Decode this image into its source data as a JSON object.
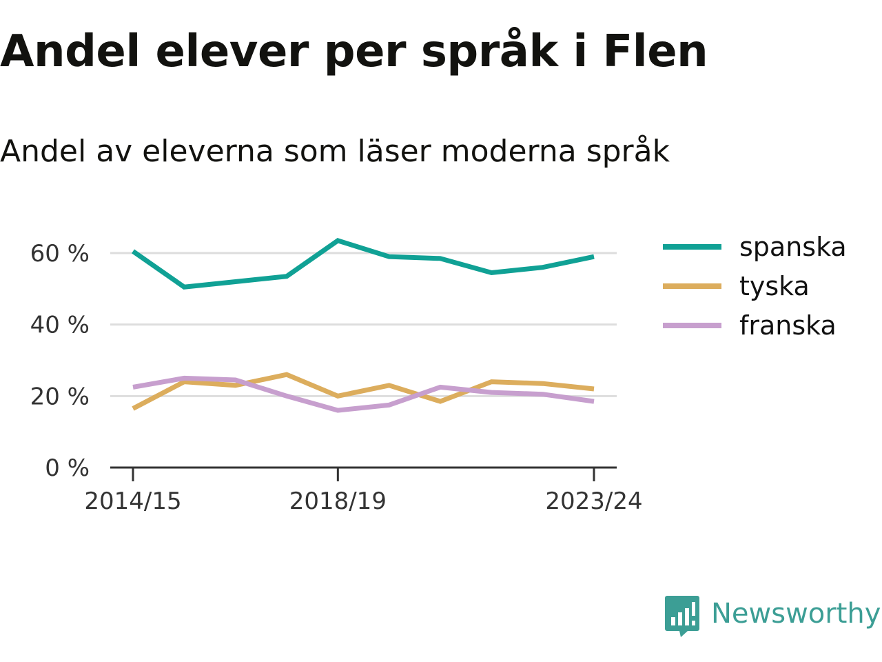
{
  "title": "Andel elever per språk i Flen",
  "subtitle": "Andel av eleverna som läser moderna språk",
  "brand": {
    "name": "Newsworthy",
    "icon": "newsworthy-logo-icon",
    "color": "#3c9e95"
  },
  "chart_data": {
    "type": "line",
    "title": "Andel elever per språk i Flen",
    "subtitle": "Andel av eleverna som läser moderna språk",
    "xlabel": "",
    "ylabel": "",
    "x": [
      "2014/15",
      "2015/16",
      "2016/17",
      "2017/18",
      "2018/19",
      "2019/20",
      "2020/21",
      "2021/22",
      "2022/23",
      "2023/24"
    ],
    "x_tick_labels": [
      "2014/15",
      "2018/19",
      "2023/24"
    ],
    "y_ticks": [
      0,
      20,
      40,
      60
    ],
    "y_tick_labels": [
      "0 %",
      "20 %",
      "40 %",
      "60 %"
    ],
    "ylim": [
      0,
      60
    ],
    "grid": "horizontal",
    "legend": "right",
    "series": [
      {
        "name": "spanska",
        "color": "#10a195",
        "values": [
          60.5,
          50.5,
          52.0,
          53.5,
          63.5,
          59.0,
          58.5,
          54.5,
          56.0,
          59.0
        ]
      },
      {
        "name": "tyska",
        "color": "#dcad5d",
        "values": [
          16.5,
          24.0,
          23.0,
          26.0,
          20.0,
          23.0,
          18.5,
          24.0,
          23.5,
          22.0
        ]
      },
      {
        "name": "franska",
        "color": "#c79fce",
        "values": [
          22.5,
          25.0,
          24.5,
          20.0,
          16.0,
          17.5,
          22.5,
          21.0,
          20.5,
          18.5
        ]
      }
    ]
  }
}
